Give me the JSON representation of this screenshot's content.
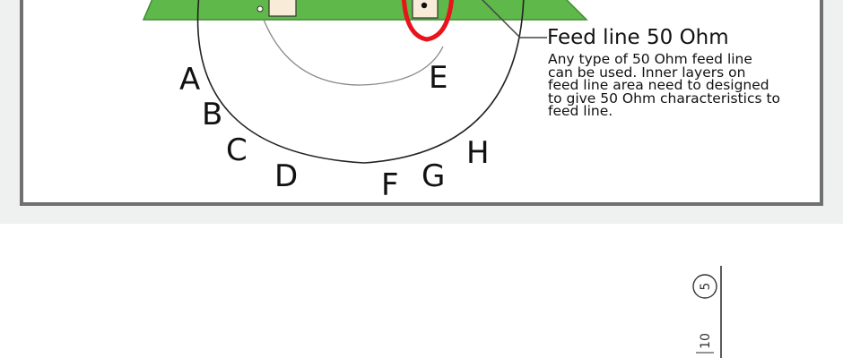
{
  "diagram": {
    "letters": [
      "A",
      "B",
      "C",
      "D",
      "E",
      "F",
      "G",
      "H"
    ],
    "feed_line": {
      "title": "Feed line 50 Ohm",
      "description": "Any type of 50 Ohm feed line\ncan be used. Inner layers on\nfeed line area need to designed\nto give 50 Ohm characteristics to\nfeed line."
    },
    "colors": {
      "ground_plane": "#5fb84a",
      "highlight_circle": "#e8141c",
      "frame": "#707070",
      "pad": "#f8ecd8"
    }
  },
  "lower_drawing": {
    "circled_number": "5",
    "rotated_label": "10"
  }
}
